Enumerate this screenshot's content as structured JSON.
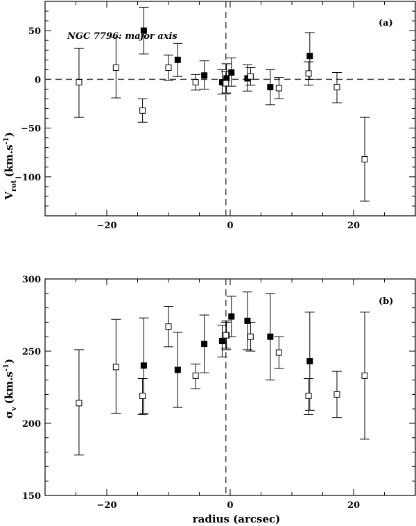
{
  "chart_data": [
    {
      "panel": "(a)",
      "type": "scatter",
      "annotation": "NGC 7796: major axis",
      "ylabel_main": "V",
      "ylabel_sub": "rot",
      "ylabel_units": "(km.s",
      "ylabel_exp": "-1",
      "ylabel_close": ")",
      "xlim": [
        -30,
        30
      ],
      "ylim": [
        -140,
        80
      ],
      "xticks": [
        -20,
        0,
        20
      ],
      "yticks": [
        50,
        0,
        -50,
        -100
      ],
      "ref_hline": 0,
      "ref_vline": -0.7,
      "series": [
        {
          "marker": "filled-square",
          "points": [
            {
              "x": -14.0,
              "y": 50,
              "lo": 26,
              "hi": 74
            },
            {
              "x": -8.5,
              "y": 20,
              "lo": 3,
              "hi": 37
            },
            {
              "x": -4.2,
              "y": 4,
              "lo": -10,
              "hi": 19
            },
            {
              "x": -1.3,
              "y": -3,
              "lo": -15,
              "hi": 10
            },
            {
              "x": -0.6,
              "y": 1,
              "lo": -14,
              "hi": 16
            },
            {
              "x": 0.2,
              "y": 7,
              "lo": -7,
              "hi": 22
            },
            {
              "x": 2.8,
              "y": 1,
              "lo": -12,
              "hi": 15
            },
            {
              "x": 6.5,
              "y": -8,
              "lo": -26,
              "hi": 10
            },
            {
              "x": 12.9,
              "y": 24,
              "lo": 0,
              "hi": 48
            }
          ]
        },
        {
          "marker": "open-square",
          "points": [
            {
              "x": -24.5,
              "y": -3,
              "lo": -39,
              "hi": 32
            },
            {
              "x": -18.5,
              "y": 12,
              "lo": -19,
              "hi": 43
            },
            {
              "x": -14.2,
              "y": -32,
              "lo": -44,
              "hi": -20
            },
            {
              "x": -10.0,
              "y": 12,
              "lo": -1,
              "hi": 25
            },
            {
              "x": -5.6,
              "y": -3,
              "lo": -11,
              "hi": 5
            },
            {
              "x": -0.7,
              "y": -4,
              "lo": -15,
              "hi": 8
            },
            {
              "x": 3.3,
              "y": 3,
              "lo": -6,
              "hi": 12
            },
            {
              "x": 7.9,
              "y": -9,
              "lo": -20,
              "hi": 2
            },
            {
              "x": 12.7,
              "y": 6,
              "lo": -6,
              "hi": 18
            },
            {
              "x": 17.3,
              "y": -8,
              "lo": -24,
              "hi": 7
            },
            {
              "x": 21.8,
              "y": -82,
              "lo": -125,
              "hi": -39
            }
          ]
        }
      ]
    },
    {
      "panel": "(b)",
      "type": "scatter",
      "ylabel_main": "σ",
      "ylabel_sub": "v",
      "ylabel_units": "(km.s",
      "ylabel_exp": "-1",
      "ylabel_close": ")",
      "xlabel": "radius (arcsec)",
      "xlim": [
        -30,
        30
      ],
      "ylim": [
        150,
        300
      ],
      "xticks": [
        -20,
        0,
        20
      ],
      "yticks": [
        300,
        250,
        200,
        150
      ],
      "ref_vline": -0.7,
      "series": [
        {
          "marker": "filled-square",
          "points": [
            {
              "x": -14.0,
              "y": 240,
              "lo": 207,
              "hi": 273
            },
            {
              "x": -8.5,
              "y": 237,
              "lo": 211,
              "hi": 263
            },
            {
              "x": -4.2,
              "y": 255,
              "lo": 235,
              "hi": 275
            },
            {
              "x": -1.3,
              "y": 257,
              "lo": 246,
              "hi": 268
            },
            {
              "x": -0.6,
              "y": 261,
              "lo": 251,
              "hi": 271
            },
            {
              "x": 0.2,
              "y": 274,
              "lo": 260,
              "hi": 288
            },
            {
              "x": 2.8,
              "y": 271,
              "lo": 251,
              "hi": 291
            },
            {
              "x": 6.5,
              "y": 260,
              "lo": 230,
              "hi": 290
            },
            {
              "x": 12.9,
              "y": 243,
              "lo": 209,
              "hi": 277
            }
          ]
        },
        {
          "marker": "open-square",
          "points": [
            {
              "x": -24.5,
              "y": 214,
              "lo": 178,
              "hi": 251
            },
            {
              "x": -18.5,
              "y": 239,
              "lo": 207,
              "hi": 272
            },
            {
              "x": -14.2,
              "y": 219,
              "lo": 206,
              "hi": 231
            },
            {
              "x": -10.0,
              "y": 267,
              "lo": 253,
              "hi": 281
            },
            {
              "x": -5.6,
              "y": 233,
              "lo": 224,
              "hi": 241
            },
            {
              "x": -0.7,
              "y": 261,
              "lo": 252,
              "hi": 270
            },
            {
              "x": 3.3,
              "y": 260,
              "lo": 250,
              "hi": 270
            },
            {
              "x": 7.9,
              "y": 249,
              "lo": 238,
              "hi": 260
            },
            {
              "x": 12.7,
              "y": 219,
              "lo": 206,
              "hi": 231
            },
            {
              "x": 17.3,
              "y": 220,
              "lo": 204,
              "hi": 236
            },
            {
              "x": 21.8,
              "y": 233,
              "lo": 189,
              "hi": 277
            }
          ]
        }
      ]
    }
  ]
}
